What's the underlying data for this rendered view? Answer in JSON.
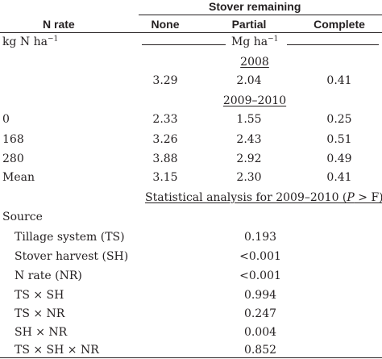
{
  "header": {
    "group_label": "Stover remaining",
    "n_rate_label": "N rate",
    "col_none": "None",
    "col_partial": "Partial",
    "col_complete": "Complete"
  },
  "units": {
    "n_rate_unit_base": "kg N ha",
    "n_rate_unit_exp": "−1",
    "yield_unit_base": "Mg ha",
    "yield_unit_exp": "−1"
  },
  "section_2008": {
    "title": "2008",
    "row": {
      "label": "",
      "none": "3.29",
      "partial": "2.04",
      "complete": "0.41"
    }
  },
  "section_2009": {
    "title": "2009–2010",
    "rows": [
      {
        "label": "0",
        "none": "2.33",
        "partial": "1.55",
        "complete": "0.25"
      },
      {
        "label": "168",
        "none": "3.26",
        "partial": "2.43",
        "complete": "0.51"
      },
      {
        "label": "280",
        "none": "3.88",
        "partial": "2.92",
        "complete": "0.49"
      },
      {
        "label": "Mean",
        "none": "3.15",
        "partial": "2.30",
        "complete": "0.41"
      }
    ]
  },
  "stats": {
    "title_prefix": "Statistical analysis for 2009–2010 (",
    "title_p": "P",
    "title_mid": " > ",
    "title_f": "F",
    "title_suffix": ")",
    "source_label": "Source",
    "rows": [
      {
        "label": "Tillage system (TS)",
        "value": "0.193"
      },
      {
        "label": "Stover harvest (SH)",
        "value": "<0.001"
      },
      {
        "label": "N rate (NR)",
        "value": "<0.001"
      },
      {
        "label": "TS × SH",
        "value": "0.994"
      },
      {
        "label": "TS × NR",
        "value": "0.247"
      },
      {
        "label": "SH × NR",
        "value": "0.004"
      },
      {
        "label": "TS × SH × NR",
        "value": "0.852"
      }
    ]
  }
}
